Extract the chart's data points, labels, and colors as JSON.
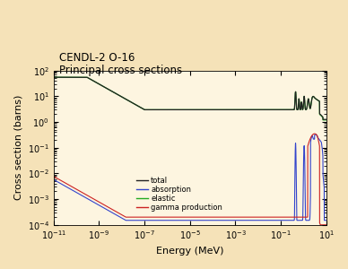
{
  "title_line1": "CENDL-2 O-16",
  "title_line2": "Principal cross sections",
  "xlabel": "Energy (MeV)",
  "ylabel": "Cross section (barns)",
  "bg_color": "#f5e2b8",
  "plot_bg_color": "#fdf5e0",
  "legend_labels": [
    "total",
    "absorption",
    "elastic",
    "gamma production"
  ],
  "colors": {
    "total": "#222222",
    "absorption": "#3344cc",
    "elastic": "#22aa22",
    "gamma": "#cc2222"
  }
}
